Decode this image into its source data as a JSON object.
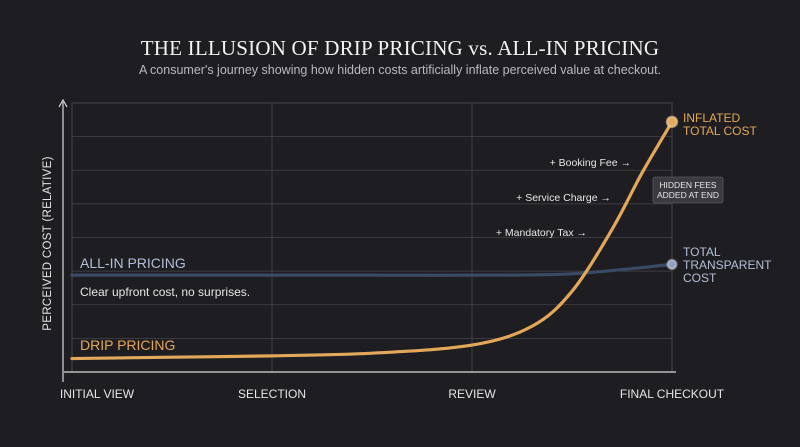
{
  "title": "THE ILLUSION OF DRIP PRICING vs. ALL-IN PRICING",
  "subtitle": "A consumer's journey showing how hidden costs artificially inflate perceived value at checkout.",
  "colors": {
    "background": "#1e1e22",
    "drip": "#e3a75a",
    "allin": "#3b4a63",
    "allin_marker": "#8fa0c0",
    "allin_text": "#b3bfd6",
    "grid": "#44444a",
    "axis": "#d9d9d9",
    "text": "#e6e6e6"
  },
  "chart_data": {
    "type": "line",
    "xlabel": "",
    "ylabel": "PERCEIVED COST (RELATIVE)",
    "categories": [
      "INITIAL VIEW",
      "SELECTION",
      "REVIEW",
      "FINAL CHECKOUT"
    ],
    "ylim": [
      0,
      10
    ],
    "grid": true,
    "series": [
      {
        "name": "DRIP PRICING",
        "x": [
          0,
          0.5,
          1,
          1.5,
          2,
          2.3,
          2.5,
          2.7,
          2.85,
          3.0
        ],
        "values": [
          0.5,
          0.55,
          0.6,
          0.7,
          1.0,
          1.7,
          3.0,
          5.3,
          7.4,
          9.3
        ],
        "end_label": "INFLATED TOTAL COST",
        "line_label_note": ""
      },
      {
        "name": "ALL-IN PRICING",
        "x": [
          0,
          0.5,
          1,
          1.5,
          2,
          2.5,
          3.0
        ],
        "values": [
          3.6,
          3.6,
          3.6,
          3.6,
          3.6,
          3.65,
          4.0
        ],
        "end_label": "TOTAL TRANSPARENT COST",
        "line_label_note": "Clear upfront cost, no surprises."
      }
    ],
    "annotations": [
      {
        "text": "+ Booking Fee →",
        "x": 2.82,
        "y": 7.8
      },
      {
        "text": "+ Service Charge →",
        "x": 2.72,
        "y": 6.5
      },
      {
        "text": "+ Mandatory Tax →",
        "x": 2.6,
        "y": 5.2
      },
      {
        "text": "HIDDEN FEES ADDED AT END",
        "x": 3.0,
        "y": 6.5
      }
    ]
  }
}
